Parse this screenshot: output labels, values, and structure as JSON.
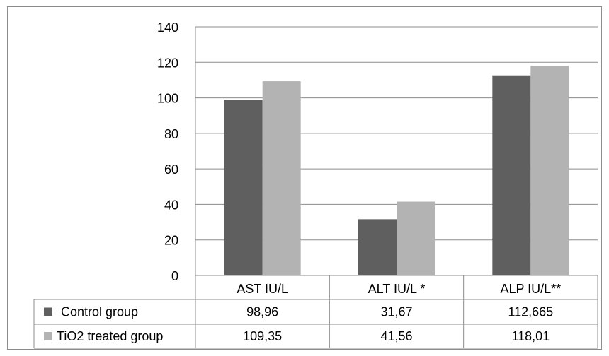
{
  "chart_data": {
    "type": "bar",
    "categories": [
      "AST IU/L",
      "ALT IU/L *",
      "ALP IU/L**"
    ],
    "series": [
      {
        "name": "Control group",
        "values": [
          98.96,
          31.67,
          112.665
        ],
        "labels": [
          "98,96",
          "31,67",
          "112,665"
        ],
        "color": "#5f5f5f"
      },
      {
        "name": "TiO2 treated group",
        "values": [
          109.35,
          41.56,
          118.01
        ],
        "labels": [
          "109,35",
          "41,56",
          "118,01"
        ],
        "color": "#b3b3b3"
      }
    ],
    "ylim": [
      0,
      140
    ],
    "yticks": [
      "0",
      "20",
      "40",
      "60",
      "80",
      "100",
      "120",
      "140"
    ],
    "grid": true,
    "legend": "data table with legend keys below the plot",
    "title": "",
    "xlabel": "",
    "ylabel": ""
  }
}
